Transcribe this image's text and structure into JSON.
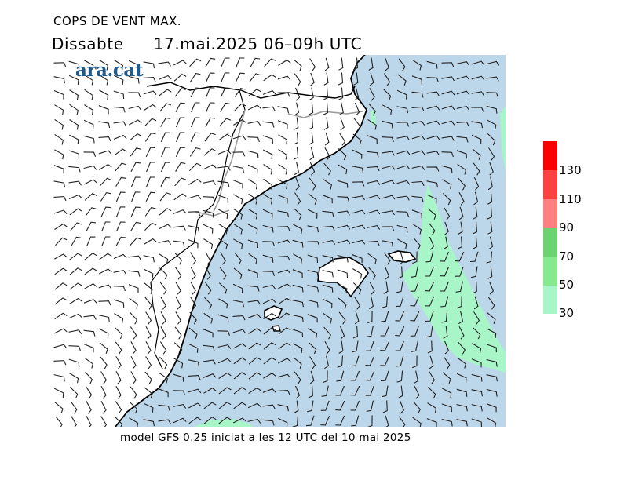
{
  "header": {
    "title": "COPS DE VENT MAX.",
    "day": "Dissabte",
    "datetime": "17.mai.2025 06–09h UTC"
  },
  "logo": {
    "text": "ara.cat"
  },
  "footer": {
    "text": "model GFS 0.25 iniciat a les 12 UTC del 10 mai 2025"
  },
  "legend": {
    "labels": [
      "130",
      "110",
      "90",
      "70",
      "50",
      "30"
    ],
    "colors": {
      "c30": "#a8f5c8",
      "c50": "#86e88f",
      "c70": "#6bd470",
      "c90": "#fe8080",
      "c110": "#fd4040",
      "c130": "#fb0000"
    }
  },
  "map": {
    "sea_color": "#bcd7ea",
    "land_color": "#ffffff",
    "highlight_color": "#a8f5c8"
  }
}
